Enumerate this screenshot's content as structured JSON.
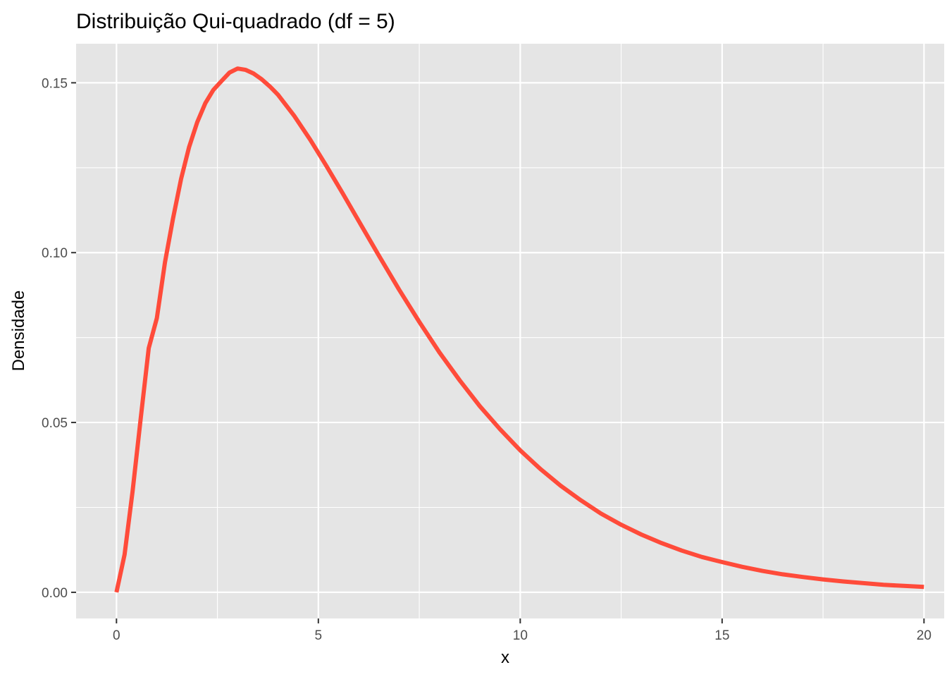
{
  "chart_data": {
    "type": "line",
    "title": "Distribuição Qui-quadrado (df = 5)",
    "xlabel": "x",
    "ylabel": "Densidade",
    "xlim": [
      -1,
      20.5
    ],
    "ylim": [
      -0.0077,
      0.1615
    ],
    "x_ticks": [
      0,
      5,
      10,
      15,
      20
    ],
    "x_tick_labels": [
      "0",
      "5",
      "10",
      "15",
      "20"
    ],
    "x_minor_ticks": [
      2.5,
      7.5,
      12.5,
      17.5
    ],
    "y_ticks": [
      0,
      0.05,
      0.1,
      0.15
    ],
    "y_tick_labels": [
      "0.00",
      "0.05",
      "0.10",
      "0.15"
    ],
    "y_minor_ticks": [
      0.025,
      0.075,
      0.125
    ],
    "grid": true,
    "legend": "none",
    "series": [
      {
        "color": "#FF4B3A",
        "x": [
          0,
          0.2,
          0.4,
          0.6,
          0.8,
          1.0,
          1.2,
          1.4,
          1.6,
          1.8,
          2.0,
          2.2,
          2.4,
          2.6,
          2.8,
          3.0,
          3.2,
          3.4,
          3.6,
          3.8,
          4.0,
          4.4,
          4.8,
          5.2,
          5.6,
          6.0,
          6.5,
          7.0,
          7.5,
          8.0,
          8.5,
          9.0,
          9.5,
          10.0,
          10.5,
          11.0,
          11.5,
          12.0,
          12.5,
          13.0,
          13.5,
          14.0,
          14.5,
          15.0,
          15.5,
          16.0,
          16.5,
          17.0,
          17.5,
          18.0,
          18.5,
          19.0,
          19.5,
          20.0
        ],
        "y": [
          0,
          0.0111,
          0.0298,
          0.0512,
          0.0719,
          0.0807,
          0.0971,
          0.11,
          0.1217,
          0.1311,
          0.1384,
          0.144,
          0.1479,
          0.1505,
          0.153,
          0.1542,
          0.1538,
          0.1527,
          0.151,
          0.1489,
          0.1465,
          0.1403,
          0.1332,
          0.1255,
          0.1175,
          0.1093,
          0.0991,
          0.0891,
          0.0796,
          0.0706,
          0.0624,
          0.0548,
          0.048,
          0.0418,
          0.0363,
          0.0314,
          0.0271,
          0.0232,
          0.0199,
          0.017,
          0.0145,
          0.0123,
          0.0104,
          0.0089,
          0.0075,
          0.0063,
          0.0053,
          0.0045,
          0.0038,
          0.0032,
          0.0027,
          0.0022,
          0.0019,
          0.0016
        ]
      }
    ]
  }
}
